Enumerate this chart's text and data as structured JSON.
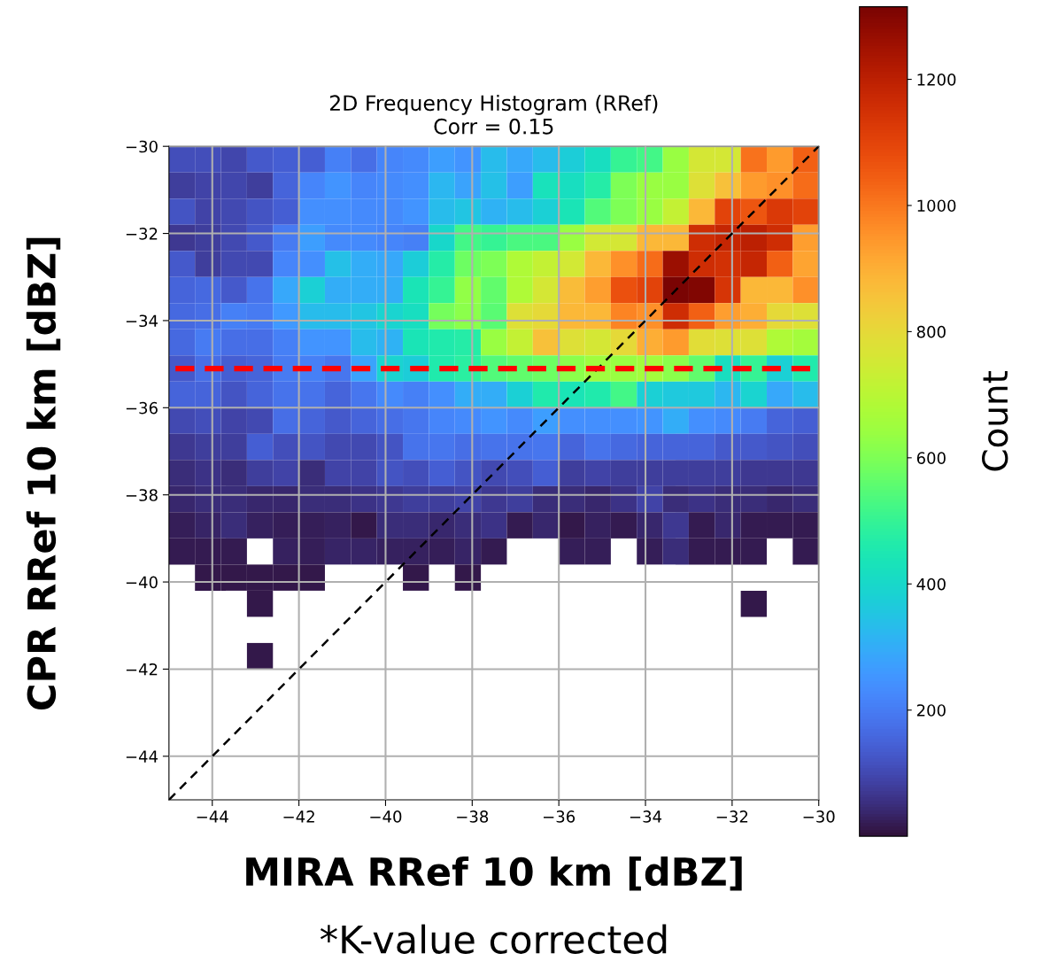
{
  "chart_data": {
    "type": "heatmap",
    "title": "2D Frequency Histogram (RRef)",
    "subtitle": "Corr = 0.15",
    "xlabel": "MIRA RRef 10 km [dBZ]",
    "ylabel": "CPR RRef 10 km [dBZ]",
    "clabel": "Count",
    "annotations": [
      "*K-value corrected"
    ],
    "x": [
      -44.7,
      -44.1,
      -43.5,
      -42.9,
      -42.3,
      -41.7,
      -41.1,
      -40.5,
      -39.9,
      -39.3,
      -38.7,
      -38.1,
      -37.5,
      -36.9,
      -36.3,
      -35.7,
      -35.1,
      -34.5,
      -33.9,
      -33.3,
      -32.7,
      -32.1,
      -31.5,
      -30.9,
      -30.3
    ],
    "y": [
      -30.3,
      -30.9,
      -31.5,
      -32.1,
      -32.7,
      -33.3,
      -33.9,
      -34.5,
      -35.1,
      -35.7,
      -36.3,
      -36.9,
      -37.5,
      -38.1,
      -38.7,
      -39.3,
      -39.9,
      -40.5,
      -41.7
    ],
    "cells": [
      [
        110,
        110,
        95,
        130,
        140,
        140,
        210,
        170,
        220,
        230,
        270,
        250,
        330,
        290,
        330,
        370,
        420,
        500,
        520,
        640,
        760,
        760,
        1010,
        940,
        1040
      ],
      [
        80,
        90,
        95,
        80,
        150,
        220,
        250,
        220,
        230,
        240,
        320,
        280,
        340,
        270,
        430,
        420,
        470,
        600,
        640,
        640,
        780,
        860,
        940,
        960,
        1020
      ],
      [
        120,
        90,
        100,
        120,
        140,
        240,
        240,
        230,
        230,
        250,
        330,
        350,
        310,
        330,
        380,
        440,
        540,
        600,
        640,
        720,
        880,
        1100,
        1060,
        1130,
        1100
      ],
      [
        70,
        80,
        100,
        130,
        200,
        270,
        230,
        230,
        220,
        210,
        400,
        520,
        500,
        530,
        530,
        640,
        750,
        760,
        880,
        880,
        1160,
        1180,
        1200,
        1160,
        930
      ],
      [
        130,
        80,
        100,
        100,
        220,
        240,
        340,
        300,
        290,
        370,
        470,
        580,
        600,
        680,
        720,
        750,
        880,
        960,
        1020,
        1260,
        1160,
        1150,
        1180,
        1040,
        920
      ],
      [
        150,
        160,
        130,
        180,
        290,
        380,
        300,
        300,
        300,
        440,
        500,
        630,
        560,
        680,
        760,
        870,
        930,
        1070,
        1100,
        1310,
        1300,
        1140,
        880,
        880,
        960
      ],
      [
        160,
        170,
        210,
        200,
        260,
        330,
        330,
        350,
        390,
        420,
        590,
        620,
        550,
        780,
        800,
        880,
        880,
        980,
        960,
        1160,
        1040,
        930,
        900,
        800,
        780
      ],
      [
        160,
        200,
        170,
        170,
        210,
        250,
        250,
        330,
        310,
        440,
        460,
        470,
        640,
        720,
        860,
        780,
        760,
        800,
        900,
        940,
        790,
        780,
        780,
        680,
        660
      ],
      [
        130,
        170,
        140,
        150,
        200,
        210,
        190,
        280,
        390,
        370,
        460,
        480,
        540,
        560,
        580,
        620,
        650,
        640,
        660,
        620,
        560,
        420,
        500,
        380,
        460
      ],
      [
        150,
        150,
        120,
        150,
        180,
        180,
        150,
        190,
        230,
        210,
        240,
        300,
        300,
        380,
        460,
        440,
        460,
        520,
        380,
        360,
        360,
        320,
        390,
        290,
        330
      ],
      [
        100,
        110,
        90,
        100,
        170,
        150,
        130,
        150,
        170,
        190,
        220,
        230,
        250,
        230,
        270,
        240,
        240,
        240,
        250,
        300,
        240,
        230,
        200,
        150,
        140
      ],
      [
        70,
        80,
        80,
        140,
        110,
        120,
        100,
        100,
        120,
        180,
        190,
        170,
        180,
        180,
        190,
        150,
        180,
        160,
        150,
        150,
        150,
        130,
        130,
        120,
        110
      ],
      [
        50,
        60,
        50,
        80,
        90,
        50,
        90,
        90,
        120,
        110,
        140,
        120,
        100,
        110,
        140,
        80,
        90,
        80,
        80,
        80,
        80,
        80,
        70,
        70,
        70
      ],
      [
        40,
        50,
        50,
        40,
        40,
        50,
        50,
        60,
        70,
        80,
        80,
        90,
        70,
        80,
        50,
        50,
        40,
        60,
        90,
        50,
        60,
        50,
        50,
        40,
        50
      ],
      [
        25,
        35,
        50,
        30,
        25,
        25,
        30,
        15,
        50,
        50,
        40,
        50,
        60,
        20,
        40,
        15,
        30,
        20,
        40,
        70,
        20,
        40,
        20,
        20,
        20
      ],
      [
        20,
        20,
        20,
        null,
        30,
        25,
        35,
        35,
        30,
        30,
        25,
        35,
        20,
        null,
        null,
        25,
        25,
        null,
        25,
        50,
        20,
        20,
        20,
        null,
        20
      ],
      [
        null,
        15,
        15,
        15,
        15,
        15,
        null,
        null,
        null,
        15,
        null,
        15,
        null,
        null,
        null,
        null,
        null,
        null,
        null,
        null,
        null,
        null,
        null,
        null,
        null
      ],
      [
        null,
        null,
        null,
        15,
        null,
        null,
        null,
        null,
        null,
        null,
        null,
        null,
        null,
        null,
        null,
        null,
        null,
        null,
        null,
        null,
        null,
        null,
        15,
        null,
        null
      ],
      [
        null,
        null,
        null,
        15,
        null,
        null,
        null,
        null,
        null,
        null,
        null,
        null,
        null,
        null,
        null,
        null,
        null,
        null,
        null,
        null,
        null,
        null,
        null,
        null,
        null
      ]
    ],
    "clim": [
      0,
      1315
    ],
    "cticks": [
      200,
      400,
      600,
      800,
      1000,
      1200
    ],
    "xlim": [
      -45,
      -30
    ],
    "ylim": [
      -45,
      -30
    ],
    "xticks": [
      {
        "value": -44,
        "label": "−44"
      },
      {
        "value": -42,
        "label": "−42"
      },
      {
        "value": -40,
        "label": "−40"
      },
      {
        "value": -38,
        "label": "−38"
      },
      {
        "value": -36,
        "label": "−36"
      },
      {
        "value": -34,
        "label": "−34"
      },
      {
        "value": -32,
        "label": "−32"
      },
      {
        "value": -30,
        "label": "−30"
      }
    ],
    "yticks": [
      {
        "value": -44,
        "label": "−44"
      },
      {
        "value": -42,
        "label": "−42"
      },
      {
        "value": -40,
        "label": "−40"
      },
      {
        "value": -38,
        "label": "−38"
      },
      {
        "value": -36,
        "label": "−36"
      },
      {
        "value": -34,
        "label": "−34"
      },
      {
        "value": -32,
        "label": "−32"
      },
      {
        "value": -30,
        "label": "−30"
      }
    ],
    "series": [
      {
        "type": "line",
        "x": [
          -45,
          -30
        ],
        "values": [
          -45,
          -30
        ],
        "color": "#000000",
        "line_style": "dashed"
      }
    ],
    "ref_lines": [
      {
        "axis": "y",
        "value": -35.1,
        "color": "#ff0000",
        "line_style": "dashed"
      }
    ],
    "grid": true
  }
}
